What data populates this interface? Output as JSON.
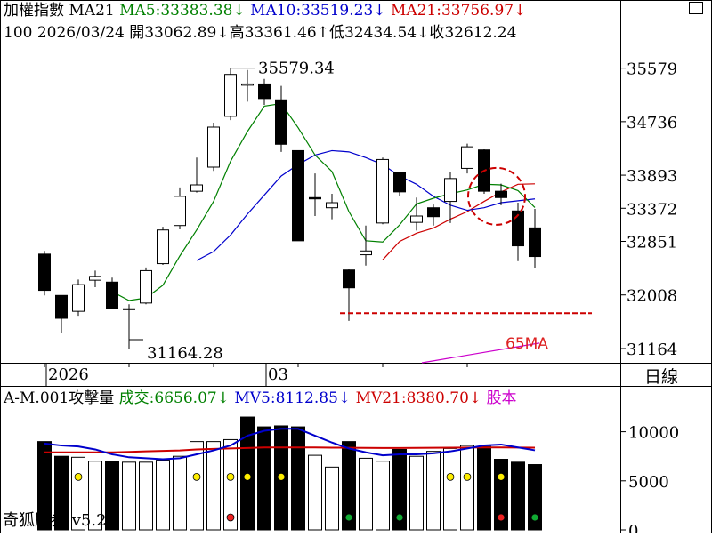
{
  "header": {
    "line1": [
      {
        "text": "加權指數 MA21",
        "color": "#000000"
      },
      {
        "text": "MA5:33383.38↓",
        "color": "#008000"
      },
      {
        "text": "MA10:33519.23↓",
        "color": "#0000cc"
      },
      {
        "text": "MA21:33756.97↓",
        "color": "#cc0000"
      }
    ],
    "line2": "100 2026/03/24 開33062.89↓高33361.46↑低32434.54↓收32612.24"
  },
  "right_axis_labels": [
    "35579",
    "34736",
    "33893",
    "33372",
    "32851",
    "32008",
    "31164"
  ],
  "x_axis_labels": [
    "2026",
    "03"
  ],
  "period_label": "日線",
  "annotations": {
    "high": "35579.34",
    "low": "31164.28",
    "ma65": "65MA"
  },
  "volume_header": [
    {
      "text": "A-M.001攻擊量",
      "color": "#000000"
    },
    {
      "text": "成交:6656.07↓",
      "color": "#008000"
    },
    {
      "text": "MV5:8112.85↓",
      "color": "#0000cc"
    },
    {
      "text": "MV21:8380.70↓",
      "color": "#cc0000"
    },
    {
      "text": "股本",
      "color": "#cc00cc"
    }
  ],
  "volume_axis_labels": [
    "10000",
    "5000",
    "0"
  ],
  "watermark": "奇狐勝券 v5.2",
  "colors": {
    "ma5": "#008000",
    "ma10": "#0000cc",
    "ma21": "#cc0000",
    "ma65": "#cc00cc",
    "support": "#cc0000",
    "circle": "#cc0000"
  },
  "chart_data": [
    {
      "type": "candlestick",
      "title": "加權指數",
      "ylim": [
        30940,
        35980
      ],
      "grid": false,
      "candles": [
        {
          "o": 32650,
          "c": 32080,
          "h": 32700,
          "l": 32000,
          "filled": true
        },
        {
          "o": 32000,
          "c": 31640,
          "h": 32000,
          "l": 31410,
          "filled": true
        },
        {
          "o": 31750,
          "c": 32170,
          "h": 32250,
          "l": 31680,
          "filled": false
        },
        {
          "o": 32240,
          "c": 32300,
          "h": 32390,
          "l": 32130,
          "filled": false
        },
        {
          "o": 32210,
          "c": 31800,
          "h": 32280,
          "l": 31780,
          "filled": true
        },
        {
          "o": 31780,
          "c": 31790,
          "h": 31860,
          "l": 31164.28,
          "filled": false
        },
        {
          "o": 31880,
          "c": 32390,
          "h": 32440,
          "l": 31860,
          "filled": false
        },
        {
          "o": 32500,
          "c": 33030,
          "h": 33080,
          "l": 32480,
          "filled": false
        },
        {
          "o": 33100,
          "c": 33560,
          "h": 33700,
          "l": 33040,
          "filled": false
        },
        {
          "o": 33640,
          "c": 33740,
          "h": 34170,
          "l": 33620,
          "filled": false
        },
        {
          "o": 34020,
          "c": 34650,
          "h": 34720,
          "l": 33960,
          "filled": false
        },
        {
          "o": 34820,
          "c": 35480,
          "h": 35579.34,
          "l": 34760,
          "filled": false
        },
        {
          "o": 35310,
          "c": 35330,
          "h": 35550,
          "l": 35050,
          "filled": false
        },
        {
          "o": 35330,
          "c": 35100,
          "h": 35410,
          "l": 35000,
          "filled": true
        },
        {
          "o": 35080,
          "c": 34380,
          "h": 35300,
          "l": 34260,
          "filled": true
        },
        {
          "o": 34280,
          "c": 32860,
          "h": 34280,
          "l": 32860,
          "filled": true
        },
        {
          "o": 33540,
          "c": 33520,
          "h": 33920,
          "l": 33250,
          "filled": true
        },
        {
          "o": 33380,
          "c": 33460,
          "h": 33600,
          "l": 33200,
          "filled": false
        },
        {
          "o": 32400,
          "c": 32120,
          "h": 32410,
          "l": 31600,
          "filled": true
        },
        {
          "o": 32640,
          "c": 32700,
          "h": 33100,
          "l": 32470,
          "filled": false
        },
        {
          "o": 33140,
          "c": 34140,
          "h": 34170,
          "l": 33120,
          "filled": false
        },
        {
          "o": 33930,
          "c": 33630,
          "h": 33930,
          "l": 33570,
          "filled": true
        },
        {
          "o": 33150,
          "c": 33250,
          "h": 33540,
          "l": 33020,
          "filled": false
        },
        {
          "o": 33380,
          "c": 33240,
          "h": 33430,
          "l": 33100,
          "filled": true
        },
        {
          "o": 33480,
          "c": 33840,
          "h": 33950,
          "l": 33140,
          "filled": false
        },
        {
          "o": 34000,
          "c": 34340,
          "h": 34390,
          "l": 33920,
          "filled": false
        },
        {
          "o": 34290,
          "c": 33640,
          "h": 34300,
          "l": 33600,
          "filled": true
        },
        {
          "o": 33640,
          "c": 33540,
          "h": 33760,
          "l": 33420,
          "filled": true
        },
        {
          "o": 33330,
          "c": 32780,
          "h": 33460,
          "l": 32540,
          "filled": true
        },
        {
          "o": 33062.89,
          "c": 32612.24,
          "h": 33361.46,
          "l": 32434.54,
          "filled": true
        }
      ],
      "ma5": [
        null,
        null,
        null,
        null,
        32060,
        31920,
        31960,
        32160,
        32620,
        33030,
        33480,
        34110,
        34580,
        34980,
        35020,
        34640,
        34210,
        33950,
        33320,
        32860,
        32840,
        33110,
        33440,
        33530,
        33600,
        33660,
        33750,
        33740,
        33650,
        33383.38
      ],
      "ma10": [
        null,
        null,
        null,
        null,
        null,
        null,
        null,
        null,
        null,
        32550,
        32690,
        32950,
        33280,
        33580,
        33880,
        34060,
        34210,
        34280,
        34260,
        34170,
        34060,
        33880,
        33750,
        33560,
        33420,
        33340,
        33380,
        33460,
        33490,
        33519.23
      ],
      "ma21": [
        null,
        null,
        null,
        null,
        null,
        null,
        null,
        null,
        null,
        null,
        null,
        null,
        null,
        null,
        null,
        null,
        null,
        null,
        null,
        null,
        32560,
        32850,
        32980,
        33060,
        33200,
        33320,
        33480,
        33630,
        33750,
        33756.97
      ],
      "ma65": {
        "from": 26,
        "to": 30,
        "start": 30940,
        "end": 31250
      },
      "support_line": {
        "value": 31720,
        "from_index": 18
      }
    },
    {
      "type": "bar",
      "title": "A-M.001攻擊量",
      "ylim": [
        0,
        12500
      ],
      "volumes": [
        9000,
        7500,
        7400,
        7000,
        7000,
        6900,
        6900,
        7100,
        7500,
        9000,
        9000,
        9200,
        11500,
        10500,
        10600,
        10500,
        7600,
        6400,
        9000,
        7300,
        7000,
        8200,
        7500,
        8000,
        8300,
        8600,
        8500,
        7200,
        6900,
        6656.07
      ],
      "filled": [
        true,
        true,
        false,
        false,
        true,
        false,
        false,
        false,
        false,
        false,
        false,
        false,
        true,
        true,
        true,
        true,
        false,
        false,
        true,
        false,
        false,
        true,
        false,
        false,
        false,
        false,
        true,
        true,
        true,
        true
      ],
      "mv5": [
        8800,
        8600,
        8500,
        8200,
        7700,
        7400,
        7300,
        7200,
        7300,
        7700,
        8100,
        8600,
        9600,
        10100,
        10300,
        10300,
        9600,
        8900,
        8300,
        7900,
        7600,
        7700,
        7700,
        7800,
        8000,
        8300,
        8600,
        8700,
        8400,
        8112.85
      ],
      "mv21": [
        7900,
        7900,
        7900,
        7900,
        7900,
        7950,
        8000,
        8050,
        8100,
        8200,
        8250,
        8300,
        8350,
        8400,
        8400,
        8400,
        8400,
        8380,
        8370,
        8360,
        8350,
        8350,
        8360,
        8370,
        8380,
        8390,
        8400,
        8400,
        8390,
        8380.7
      ],
      "dots": [
        {
          "i": 2,
          "color": "yellow",
          "pos": "mid"
        },
        {
          "i": 9,
          "color": "yellow",
          "pos": "mid"
        },
        {
          "i": 11,
          "color": "yellow",
          "pos": "mid"
        },
        {
          "i": 12,
          "color": "yellow",
          "pos": "mid"
        },
        {
          "i": 14,
          "color": "yellow",
          "pos": "mid"
        },
        {
          "i": 24,
          "color": "yellow",
          "pos": "mid"
        },
        {
          "i": 25,
          "color": "yellow",
          "pos": "mid"
        },
        {
          "i": 27,
          "color": "yellow",
          "pos": "mid"
        },
        {
          "i": 11,
          "color": "red",
          "pos": "base"
        },
        {
          "i": 18,
          "color": "green",
          "pos": "base"
        },
        {
          "i": 21,
          "color": "green",
          "pos": "base"
        },
        {
          "i": 27,
          "color": "red",
          "pos": "base"
        },
        {
          "i": 29,
          "color": "green",
          "pos": "base"
        }
      ]
    }
  ]
}
